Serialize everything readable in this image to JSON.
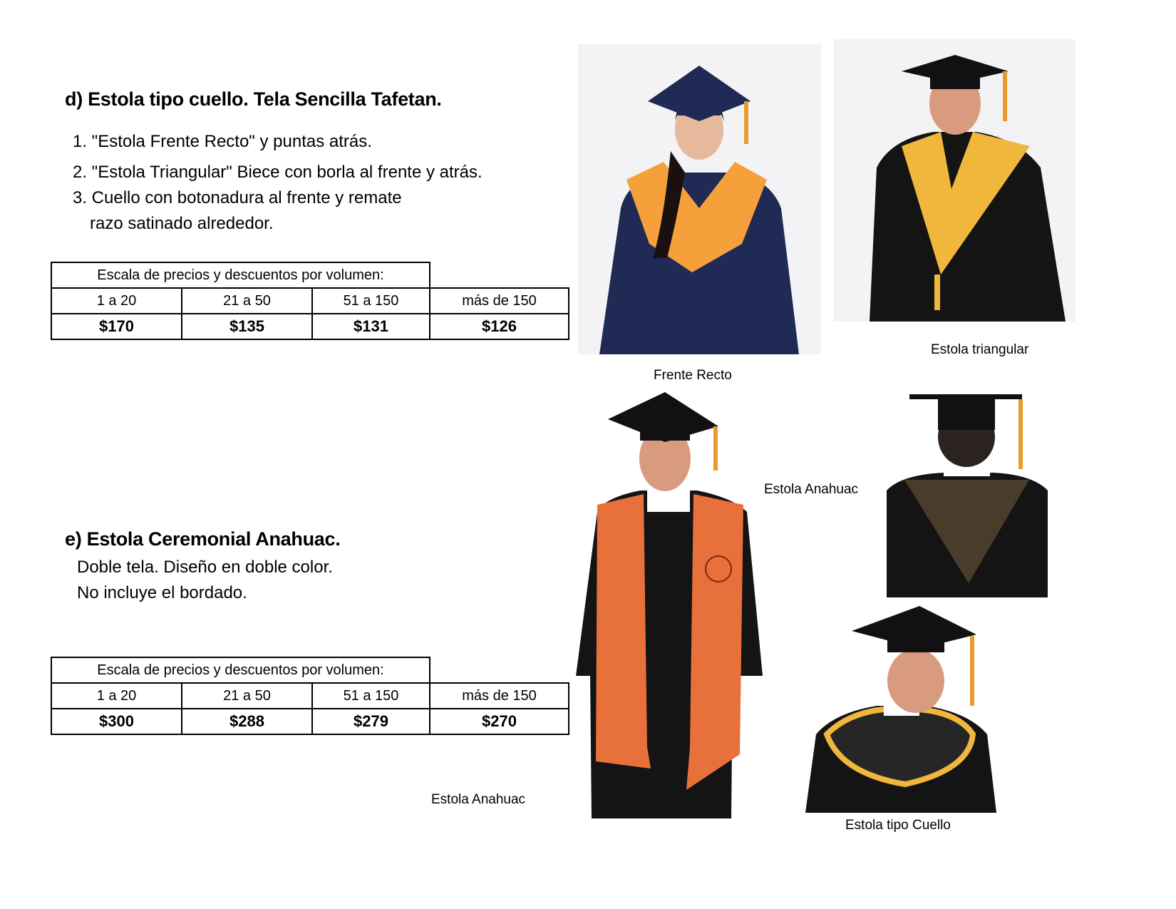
{
  "section_d": {
    "title": "d) Estola tipo cuello. Tela Sencilla Tafetan.",
    "items": [
      "1. \"Estola Frente Recto\" y puntas atrás.",
      "2. \"Estola Triangular\" Biece con borla al frente y atrás.",
      "3. Cuello con botonadura al frente y remate",
      "razo satinado alrededor."
    ],
    "table": {
      "header": "Escala de precios y descuentos por volumen:",
      "ranges": [
        "1 a 20",
        "21 a 50",
        "51 a 150",
        "más de 150"
      ],
      "prices": [
        "$170",
        "$135",
        "$131",
        "$126"
      ]
    }
  },
  "section_e": {
    "title": "e) Estola Ceremonial Anahuac.",
    "lines": [
      "Doble tela. Diseño en doble color.",
      "No incluye el bordado."
    ],
    "table": {
      "header": "Escala de precios y descuentos por volumen:",
      "ranges": [
        "1 a 20",
        "21 a 50",
        "51 a 150",
        "más de 150"
      ],
      "prices": [
        "$300",
        "$288",
        "$279",
        "$270"
      ]
    }
  },
  "captions": {
    "frente_recto": "Frente Recto",
    "triangular": "Estola triangular",
    "anahuac_right": "Estola Anahuac",
    "anahuac_bottom": "Estola Anahuac",
    "cuello": "Estola tipo Cuello"
  },
  "colors": {
    "navy_gown": "#1f2a55",
    "black_gown": "#141414",
    "orange_stole": "#f5a03a",
    "yellow_stole": "#f0b73c",
    "anahuac_orange": "#e8703a",
    "brown_hood": "#4a3c2a"
  }
}
